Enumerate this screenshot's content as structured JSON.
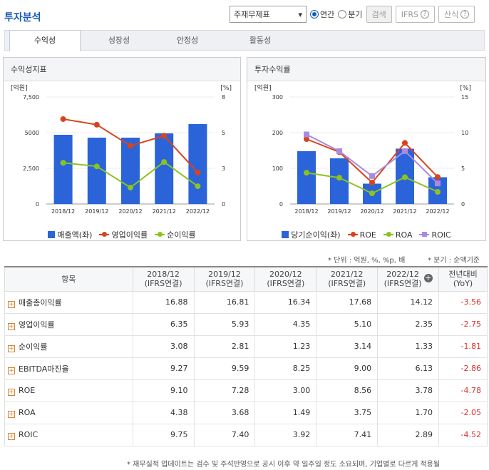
{
  "header": {
    "title": "투자분석",
    "select_value": "주재무제표",
    "radio_annual": "연간",
    "radio_quarter": "분기",
    "search_label": "검색",
    "ifrs_label": "IFRS",
    "calc_label": "산식",
    "help_glyph": "?"
  },
  "tabs": [
    "수익성",
    "성장성",
    "안정성",
    "활동성"
  ],
  "left_chart": {
    "panel_title": "수익성지표",
    "left_unit": "[억원]",
    "right_unit": "[%]",
    "legend": [
      "매출액(좌)",
      "영업이익률",
      "순이익률"
    ]
  },
  "right_chart": {
    "panel_title": "투자수익률",
    "left_unit": "[억원]",
    "right_unit": "[%]",
    "legend": [
      "당기순이익(좌)",
      "ROE",
      "ROA",
      "ROIC"
    ]
  },
  "chart_data": [
    {
      "type": "bar",
      "categories": [
        "2018/12",
        "2019/12",
        "2020/12",
        "2021/12",
        "2022/12"
      ],
      "left_ticks": [
        "7,500",
        "5000",
        "2,500",
        "0"
      ],
      "right_ticks": [
        "8",
        "5",
        "3",
        "0"
      ],
      "ylim": [
        0,
        7500
      ],
      "y2lim": [
        0,
        8
      ],
      "series": [
        {
          "name": "매출액(좌)",
          "type": "bar",
          "axis": "left",
          "values": [
            4850,
            4650,
            4650,
            4950,
            5600
          ]
        },
        {
          "name": "영업이익률",
          "type": "line",
          "axis": "right",
          "values": [
            6.35,
            5.93,
            4.35,
            5.1,
            2.35
          ]
        },
        {
          "name": "순이익률",
          "type": "line",
          "axis": "right",
          "values": [
            3.08,
            2.81,
            1.23,
            3.14,
            1.33
          ]
        }
      ],
      "colors": {
        "bar": "#2b64d9",
        "op": "#d9431c",
        "net": "#8cc31e"
      }
    },
    {
      "type": "bar",
      "categories": [
        "2018/12",
        "2019/12",
        "2020/12",
        "2021/12",
        "2022/12"
      ],
      "left_ticks": [
        "300",
        "200",
        "100",
        "0"
      ],
      "right_ticks": [
        "15",
        "10",
        "5",
        "0"
      ],
      "ylim": [
        0,
        300
      ],
      "y2lim": [
        0,
        15
      ],
      "series": [
        {
          "name": "당기순이익(좌)",
          "type": "bar",
          "axis": "left",
          "values": [
            148,
            128,
            57,
            155,
            75
          ]
        },
        {
          "name": "ROE",
          "type": "line",
          "axis": "right",
          "values": [
            9.1,
            7.28,
            3.0,
            8.56,
            3.78
          ]
        },
        {
          "name": "ROA",
          "type": "line",
          "axis": "right",
          "values": [
            4.38,
            3.68,
            1.49,
            3.75,
            1.7
          ]
        },
        {
          "name": "ROIC",
          "type": "line",
          "axis": "right",
          "values": [
            9.75,
            7.4,
            3.92,
            7.41,
            2.89
          ]
        }
      ],
      "colors": {
        "bar": "#2b64d9",
        "roe": "#d9431c",
        "roa": "#8cc31e",
        "roic": "#a98ae0"
      }
    }
  ],
  "notes": {
    "unit": "* 단위 : 억원, %, %p, 배",
    "quarter": "* 분기 : 순액기준",
    "footer": "* 재무실적 업데이트는 검수 및 주석반영으로 공시 이후 약 일주일 정도 소요되며, 기업별로 다르게 적용될"
  },
  "table": {
    "headers": [
      "항목",
      "2018/12\n(IFRS연결)",
      "2019/12\n(IFRS연결)",
      "2020/12\n(IFRS연결)",
      "2021/12\n(IFRS연결)",
      "2022/12\n(IFRS연결)",
      "전년대비\n(YoY)"
    ],
    "rows": [
      {
        "name": "매출총이익률",
        "values": [
          "16.88",
          "16.81",
          "16.34",
          "17.68",
          "14.12",
          "-3.56"
        ]
      },
      {
        "name": "영업이익률",
        "values": [
          "6.35",
          "5.93",
          "4.35",
          "5.10",
          "2.35",
          "-2.75"
        ]
      },
      {
        "name": "순이익률",
        "values": [
          "3.08",
          "2.81",
          "1.23",
          "3.14",
          "1.33",
          "-1.81"
        ]
      },
      {
        "name": "EBITDA마진율",
        "values": [
          "9.27",
          "9.59",
          "8.25",
          "9.00",
          "6.13",
          "-2.86"
        ]
      },
      {
        "name": "ROE",
        "values": [
          "9.10",
          "7.28",
          "3.00",
          "8.56",
          "3.78",
          "-4.78"
        ]
      },
      {
        "name": "ROA",
        "values": [
          "4.38",
          "3.68",
          "1.49",
          "3.75",
          "1.70",
          "-2.05"
        ]
      },
      {
        "name": "ROIC",
        "values": [
          "9.75",
          "7.40",
          "3.92",
          "7.41",
          "2.89",
          "-4.52"
        ]
      }
    ]
  }
}
